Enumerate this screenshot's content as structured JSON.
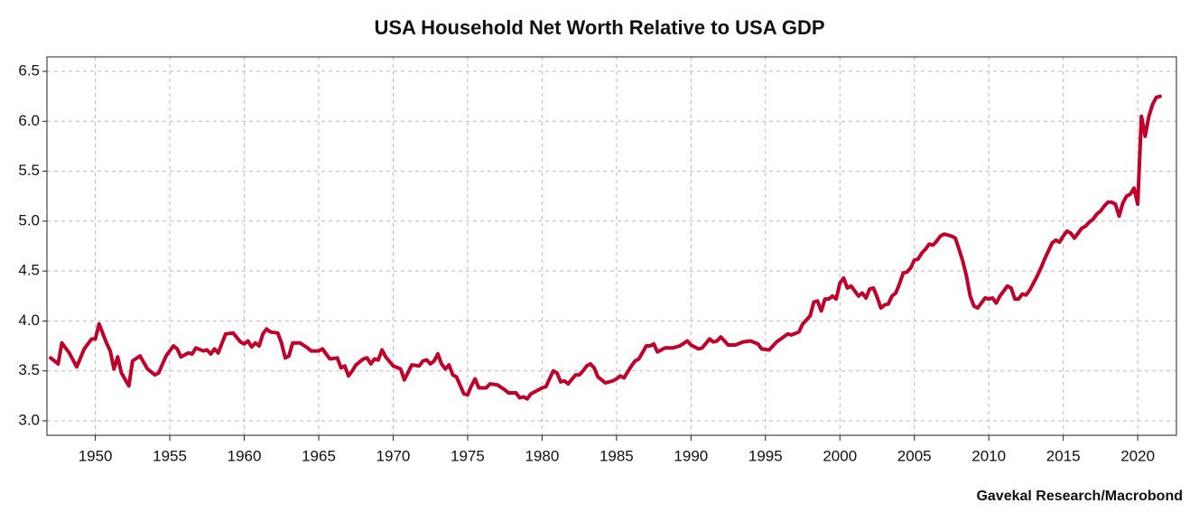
{
  "chart_data": {
    "type": "line",
    "title": "USA Household Net Worth Relative to USA GDP",
    "source": "Gavekal Research/Macrobond",
    "x": [
      1947.0,
      1947.5,
      1947.75,
      1948.25,
      1948.75,
      1949.25,
      1949.75,
      1950.0,
      1950.25,
      1950.75,
      1951.0,
      1951.25,
      1951.5,
      1951.75,
      1952.25,
      1952.5,
      1953.0,
      1953.5,
      1954.0,
      1954.25,
      1954.75,
      1955.25,
      1955.5,
      1955.75,
      1956.25,
      1956.5,
      1956.75,
      1957.25,
      1957.5,
      1957.75,
      1958.0,
      1958.25,
      1958.75,
      1959.25,
      1959.75,
      1960.0,
      1960.25,
      1960.5,
      1960.75,
      1961.0,
      1961.25,
      1961.5,
      1961.75,
      1962.25,
      1962.5,
      1962.75,
      1963.0,
      1963.25,
      1963.75,
      1964.25,
      1964.5,
      1965.0,
      1965.25,
      1965.75,
      1966.25,
      1966.5,
      1966.75,
      1967.0,
      1967.25,
      1967.5,
      1968.0,
      1968.25,
      1968.5,
      1968.75,
      1969.0,
      1969.25,
      1969.5,
      1970.0,
      1970.5,
      1970.75,
      1971.25,
      1971.75,
      1972.0,
      1972.25,
      1972.5,
      1972.75,
      1973.0,
      1973.25,
      1973.5,
      1973.75,
      1974.0,
      1974.25,
      1974.75,
      1975.0,
      1975.25,
      1975.5,
      1975.75,
      1976.25,
      1976.5,
      1977.0,
      1977.5,
      1977.75,
      1978.25,
      1978.5,
      1978.75,
      1979.0,
      1979.25,
      1979.75,
      1980.0,
      1980.25,
      1980.5,
      1980.75,
      1981.0,
      1981.25,
      1981.5,
      1981.75,
      1982.25,
      1982.5,
      1982.75,
      1983.0,
      1983.25,
      1983.5,
      1983.75,
      1984.25,
      1984.75,
      1985.0,
      1985.25,
      1985.5,
      1986.0,
      1986.25,
      1986.5,
      1987.0,
      1987.25,
      1987.5,
      1987.75,
      1988.25,
      1988.75,
      1989.25,
      1989.75,
      1990.0,
      1990.5,
      1990.75,
      1991.25,
      1991.5,
      1991.75,
      1992.0,
      1992.5,
      1993.0,
      1993.5,
      1994.0,
      1994.5,
      1994.75,
      1995.25,
      1995.75,
      1996.5,
      1996.75,
      1997.25,
      1997.5,
      1998.0,
      1998.25,
      1998.5,
      1998.75,
      1999.0,
      1999.25,
      1999.5,
      1999.75,
      2000.0,
      2000.25,
      2000.5,
      2000.75,
      2001.25,
      2001.5,
      2001.75,
      2002.0,
      2002.25,
      2002.5,
      2002.75,
      2003.0,
      2003.25,
      2003.5,
      2003.75,
      2004.0,
      2004.25,
      2004.5,
      2004.75,
      2005.0,
      2005.25,
      2005.5,
      2005.75,
      2006.0,
      2006.25,
      2006.5,
      2006.75,
      2007.0,
      2007.5,
      2007.75,
      2008.0,
      2008.25,
      2008.5,
      2008.75,
      2009.0,
      2009.25,
      2009.5,
      2009.75,
      2010.0,
      2010.25,
      2010.5,
      2010.75,
      2011.25,
      2011.5,
      2011.75,
      2012.0,
      2012.25,
      2012.5,
      2012.75,
      2013.0,
      2013.25,
      2013.5,
      2013.75,
      2014.0,
      2014.25,
      2014.5,
      2014.75,
      2015.0,
      2015.25,
      2015.5,
      2015.75,
      2016.0,
      2016.25,
      2016.5,
      2016.75,
      2017.0,
      2017.25,
      2017.5,
      2017.75,
      2018.0,
      2018.25,
      2018.5,
      2018.75,
      2019.0,
      2019.25,
      2019.5,
      2019.75,
      2020.0,
      2020.25,
      2020.5,
      2020.75,
      2021.0,
      2021.25,
      2021.5
    ],
    "series": [
      {
        "color": "#c0002b",
        "values": [
          3.63,
          3.57,
          3.78,
          3.68,
          3.54,
          3.72,
          3.82,
          3.82,
          3.97,
          3.78,
          3.7,
          3.52,
          3.64,
          3.48,
          3.35,
          3.6,
          3.65,
          3.52,
          3.46,
          3.48,
          3.65,
          3.75,
          3.72,
          3.64,
          3.68,
          3.67,
          3.73,
          3.7,
          3.71,
          3.67,
          3.72,
          3.68,
          3.87,
          3.88,
          3.79,
          3.77,
          3.8,
          3.74,
          3.78,
          3.75,
          3.87,
          3.92,
          3.89,
          3.88,
          3.78,
          3.63,
          3.65,
          3.78,
          3.78,
          3.73,
          3.7,
          3.7,
          3.72,
          3.62,
          3.63,
          3.53,
          3.55,
          3.45,
          3.5,
          3.56,
          3.62,
          3.63,
          3.57,
          3.62,
          3.61,
          3.71,
          3.64,
          3.55,
          3.52,
          3.41,
          3.56,
          3.55,
          3.6,
          3.61,
          3.57,
          3.6,
          3.67,
          3.57,
          3.52,
          3.56,
          3.46,
          3.44,
          3.27,
          3.26,
          3.35,
          3.42,
          3.33,
          3.33,
          3.37,
          3.36,
          3.31,
          3.28,
          3.28,
          3.23,
          3.24,
          3.22,
          3.27,
          3.31,
          3.33,
          3.34,
          3.42,
          3.5,
          3.48,
          3.39,
          3.4,
          3.37,
          3.46,
          3.46,
          3.5,
          3.55,
          3.57,
          3.53,
          3.44,
          3.38,
          3.4,
          3.42,
          3.45,
          3.43,
          3.55,
          3.6,
          3.62,
          3.75,
          3.75,
          3.77,
          3.69,
          3.73,
          3.73,
          3.75,
          3.8,
          3.76,
          3.72,
          3.73,
          3.82,
          3.79,
          3.8,
          3.84,
          3.76,
          3.76,
          3.79,
          3.8,
          3.77,
          3.72,
          3.71,
          3.79,
          3.87,
          3.86,
          3.89,
          3.97,
          4.05,
          4.19,
          4.2,
          4.1,
          4.22,
          4.22,
          4.25,
          4.22,
          4.38,
          4.43,
          4.33,
          4.35,
          4.25,
          4.28,
          4.23,
          4.32,
          4.33,
          4.24,
          4.13,
          4.16,
          4.17,
          4.25,
          4.28,
          4.37,
          4.48,
          4.49,
          4.53,
          4.61,
          4.62,
          4.68,
          4.72,
          4.77,
          4.76,
          4.8,
          4.85,
          4.87,
          4.85,
          4.83,
          4.72,
          4.6,
          4.45,
          4.25,
          4.15,
          4.13,
          4.18,
          4.23,
          4.22,
          4.23,
          4.18,
          4.25,
          4.35,
          4.33,
          4.22,
          4.22,
          4.27,
          4.26,
          4.31,
          4.38,
          4.45,
          4.53,
          4.62,
          4.7,
          4.78,
          4.81,
          4.79,
          4.85,
          4.9,
          4.88,
          4.83,
          4.88,
          4.93,
          4.95,
          4.99,
          5.02,
          5.07,
          5.1,
          5.15,
          5.19,
          5.19,
          5.17,
          5.05,
          5.18,
          5.25,
          5.27,
          5.33,
          5.17,
          6.05,
          5.85,
          6.05,
          6.17,
          6.24,
          6.25
        ]
      }
    ],
    "xlim": [
      1946.75,
      2022.6
    ],
    "ylim": [
      2.855,
      6.645
    ],
    "xticks": [
      1950,
      1955,
      1960,
      1965,
      1970,
      1975,
      1980,
      1985,
      1990,
      1995,
      2000,
      2005,
      2010,
      2015,
      2020
    ],
    "yticks": [
      {
        "value": 3,
        "label": "3.0"
      },
      3.5,
      {
        "value": 4,
        "label": "4.0"
      },
      4.5,
      {
        "value": 5,
        "label": "5.0"
      },
      5.5,
      {
        "value": 6,
        "label": "6.0"
      },
      6.5
    ],
    "grid": true
  }
}
